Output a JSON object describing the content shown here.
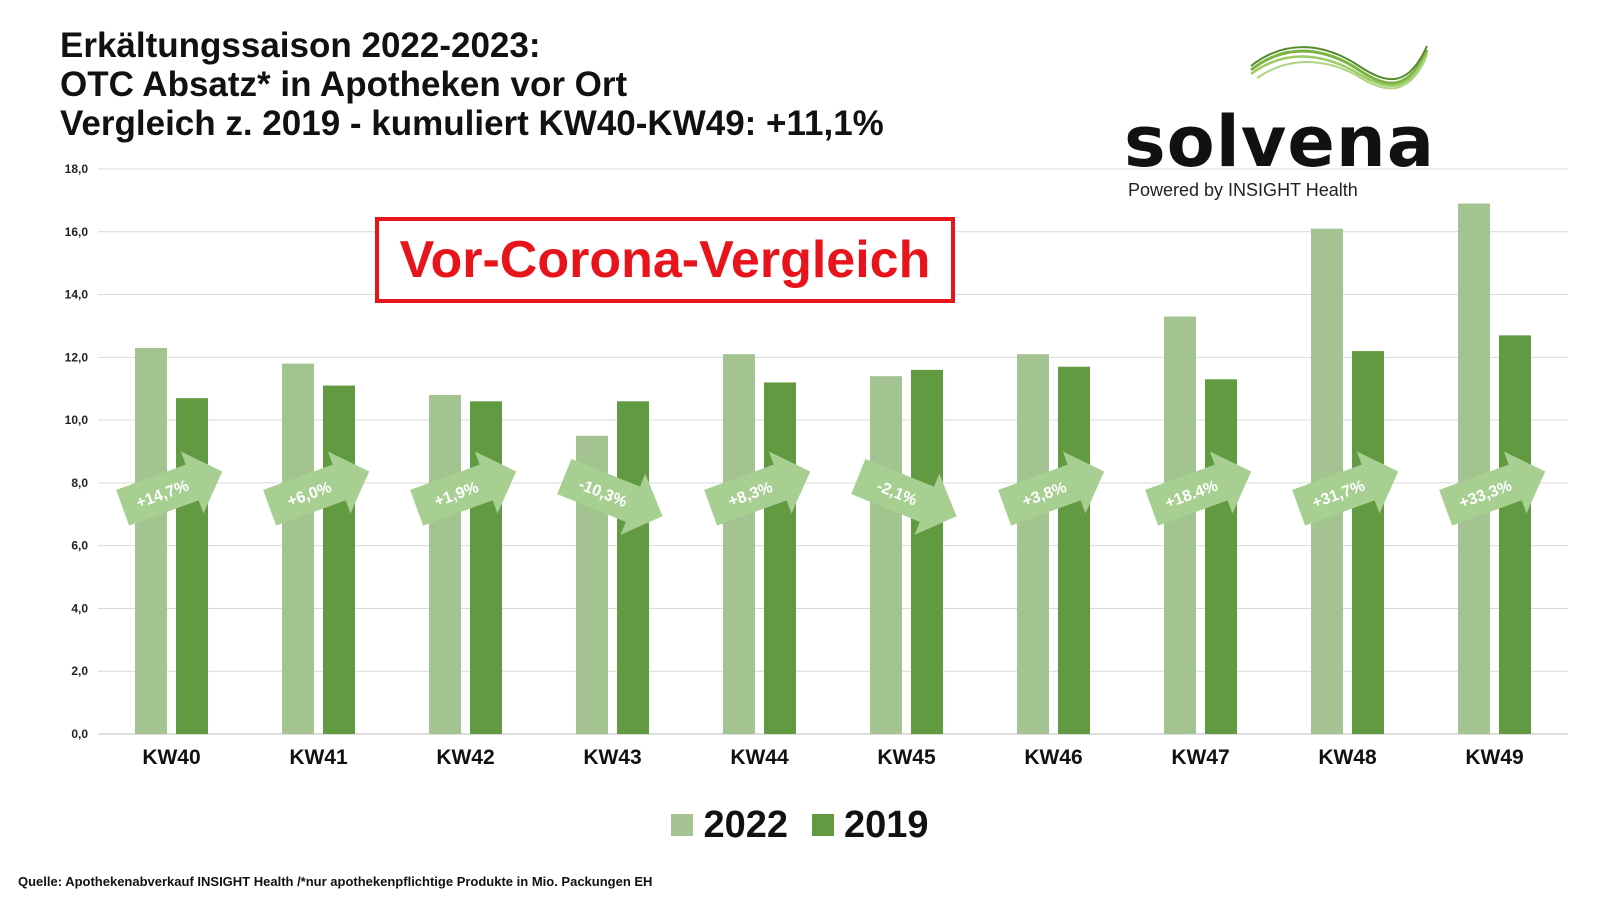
{
  "title_lines": [
    "Erkältungssaison 2022-2023:",
    "OTC Absatz* in Apotheken vor Ort",
    "Vergleich z. 2019 - kumuliert KW40-KW49: +11,1%"
  ],
  "logo": {
    "wordmark": "solvena",
    "tagline": "Powered by INSIGHT Health",
    "color": "#7cb342"
  },
  "callout": {
    "text": "Vor-Corona-Vergleich",
    "color": "#e8141b"
  },
  "footnote": "Quelle: Apothekenabverkauf INSIGHT Health /*nur apothekenpflichtige Produkte in Mio. Packungen EH",
  "chart_data": {
    "type": "bar",
    "categories": [
      "KW40",
      "KW41",
      "KW42",
      "KW43",
      "KW44",
      "KW45",
      "KW46",
      "KW47",
      "KW48",
      "KW49"
    ],
    "series": [
      {
        "name": "2022",
        "color": "#a3c490",
        "values": [
          12.3,
          11.8,
          10.8,
          9.5,
          12.1,
          11.4,
          12.1,
          13.3,
          16.1,
          16.9
        ]
      },
      {
        "name": "2019",
        "color": "#629a41",
        "values": [
          10.7,
          11.1,
          10.6,
          10.6,
          11.2,
          11.6,
          11.7,
          11.3,
          12.2,
          12.7
        ]
      }
    ],
    "change_labels": [
      "+14,7%",
      "+6,0%",
      "+1,9%",
      "-10,3%",
      "+8,3%",
      "-2,1%",
      "+3,8%",
      "+18.4%",
      "+31,7%",
      "+33,3%"
    ],
    "arrow_color": "#a7cf92",
    "ylim": [
      0,
      18
    ],
    "yticks": [
      "0,0",
      "2,0",
      "4,0",
      "6,0",
      "8,0",
      "10,0",
      "12,0",
      "14,0",
      "16,0",
      "18,0"
    ],
    "grid": true,
    "legend_position": "bottom",
    "xlabel": "",
    "ylabel": ""
  }
}
